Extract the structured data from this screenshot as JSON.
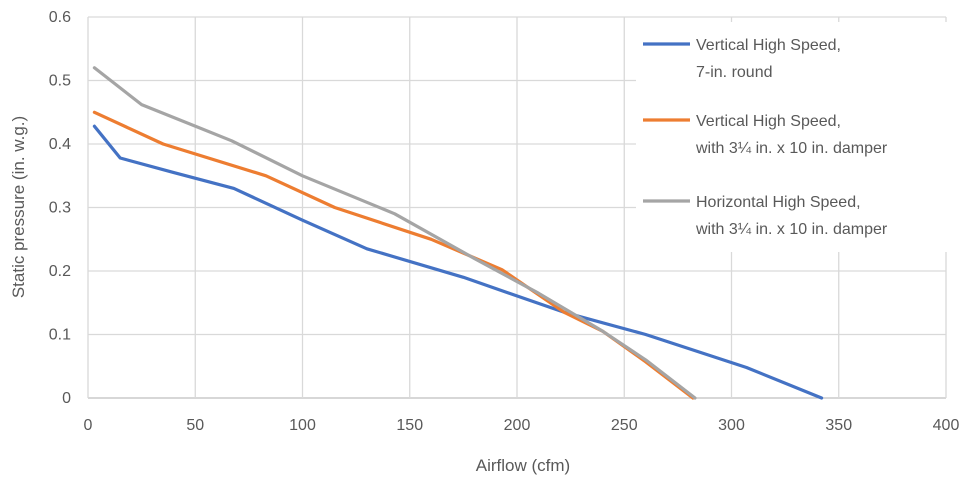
{
  "chart_data": {
    "type": "line",
    "title": "",
    "xlabel": "Airflow (cfm)",
    "ylabel": "Static pressure (in. w.g.)",
    "xlim": [
      0,
      400
    ],
    "ylim": [
      0,
      0.6
    ],
    "x_ticks": [
      "0",
      "50",
      "100",
      "150",
      "200",
      "250",
      "300",
      "350",
      "400"
    ],
    "y_ticks": [
      "0",
      "0.1",
      "0.2",
      "0.3",
      "0.4",
      "0.5",
      "0.6"
    ],
    "grid": true,
    "legend_position": "right",
    "series": [
      {
        "name": "Vertical High Speed,",
        "name_line2": "7-in. round",
        "color": "#4472c4",
        "points": [
          [
            3,
            0.428
          ],
          [
            15,
            0.378
          ],
          [
            40,
            0.355
          ],
          [
            68,
            0.33
          ],
          [
            100,
            0.28
          ],
          [
            130,
            0.235
          ],
          [
            175,
            0.19
          ],
          [
            222,
            0.135
          ],
          [
            260,
            0.1
          ],
          [
            307,
            0.048
          ],
          [
            342,
            0.0
          ]
        ]
      },
      {
        "name": "Vertical High Speed,",
        "name_line2": "with 3¼ in. x 10 in. damper",
        "color": "#ed7d31",
        "points": [
          [
            3,
            0.45
          ],
          [
            35,
            0.4
          ],
          [
            83,
            0.35
          ],
          [
            115,
            0.3
          ],
          [
            160,
            0.25
          ],
          [
            193,
            0.202
          ],
          [
            222,
            0.135
          ],
          [
            240,
            0.105
          ],
          [
            260,
            0.057
          ],
          [
            282,
            0.0
          ]
        ]
      },
      {
        "name": "Horizontal High Speed,",
        "name_line2": "with 3¼ in. x 10 in. damper",
        "color": "#a5a5a5",
        "points": [
          [
            3,
            0.52
          ],
          [
            25,
            0.462
          ],
          [
            67,
            0.405
          ],
          [
            100,
            0.35
          ],
          [
            143,
            0.29
          ],
          [
            180,
            0.22
          ],
          [
            210,
            0.165
          ],
          [
            240,
            0.105
          ],
          [
            260,
            0.06
          ],
          [
            283,
            0.0
          ]
        ]
      }
    ]
  }
}
